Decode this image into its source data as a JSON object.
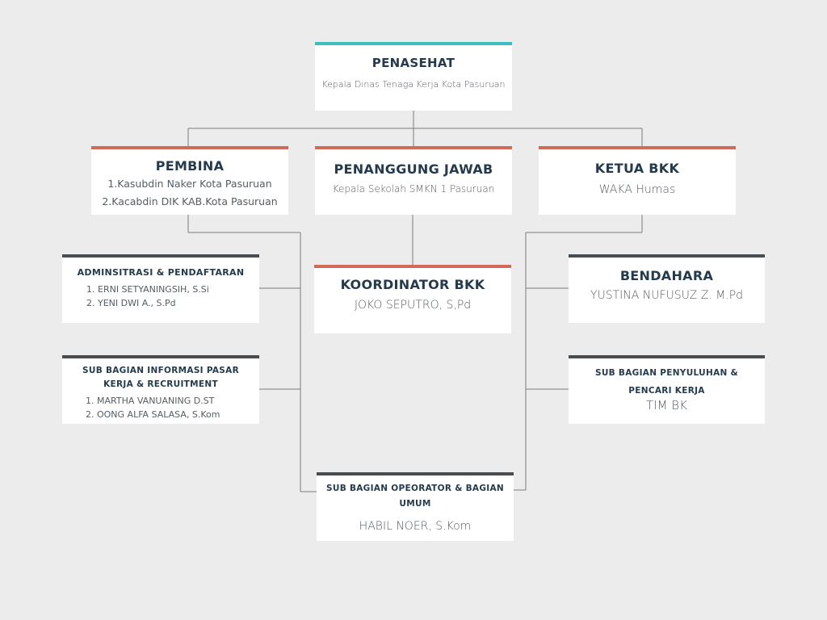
{
  "penasehat": {
    "title": "PENASEHAT",
    "subtitle": "Kepala Dinas Tenaga Kerja Kota Pasuruan"
  },
  "pembina": {
    "title": "PEMBINA",
    "items": [
      "1.Kasubdin Naker Kota Pasuruan",
      "2.Kacabdin DIK KAB.Kota Pasuruan"
    ]
  },
  "penanggung_jawab": {
    "title": "PENANGGUNG JAWAB",
    "subtitle": "Kepala Sekolah SMKN 1 Pasuruan"
  },
  "ketua_bkk": {
    "title": "KETUA BKK",
    "subtitle": "WAKA Humas"
  },
  "koordinator_bkk": {
    "title": "KOORDINATOR BKK",
    "subtitle": "JOKO SEPUTRO, S,Pd"
  },
  "administrasi": {
    "title": "ADMINSITRASI & PENDAFTARAN",
    "items": [
      "1. ERNI SETYANINGSIH, S.Si",
      "2. YENI DWI A., S.Pd"
    ]
  },
  "informasi_pasar": {
    "title": "SUB BAGIAN INFORMASI PASAR KERJA & RECRUITMENT",
    "items": [
      "1. MARTHA VANUANING D.ST",
      "2. OONG ALFA SALASA, S.Kom"
    ]
  },
  "bendahara": {
    "title": "BENDAHARA",
    "subtitle": "YUSTINA NUFUSUZ Z. M.Pd"
  },
  "penyuluhan": {
    "title": "SUB BAGIAN PENYULUHAN & PENCARI KERJA",
    "subtitle": "TIM BK"
  },
  "operator": {
    "title": "SUB BAGIAN OPEORATOR & BAGIAN UMUM",
    "subtitle": "HABIL NOER, S.Kom"
  },
  "colors": {
    "teal": "#3dbfbf",
    "red": "#cf6b58",
    "dark": "#4a4d50",
    "background": "#ececec",
    "title_text": "#243b4f",
    "connector": "#7d7d7d"
  }
}
